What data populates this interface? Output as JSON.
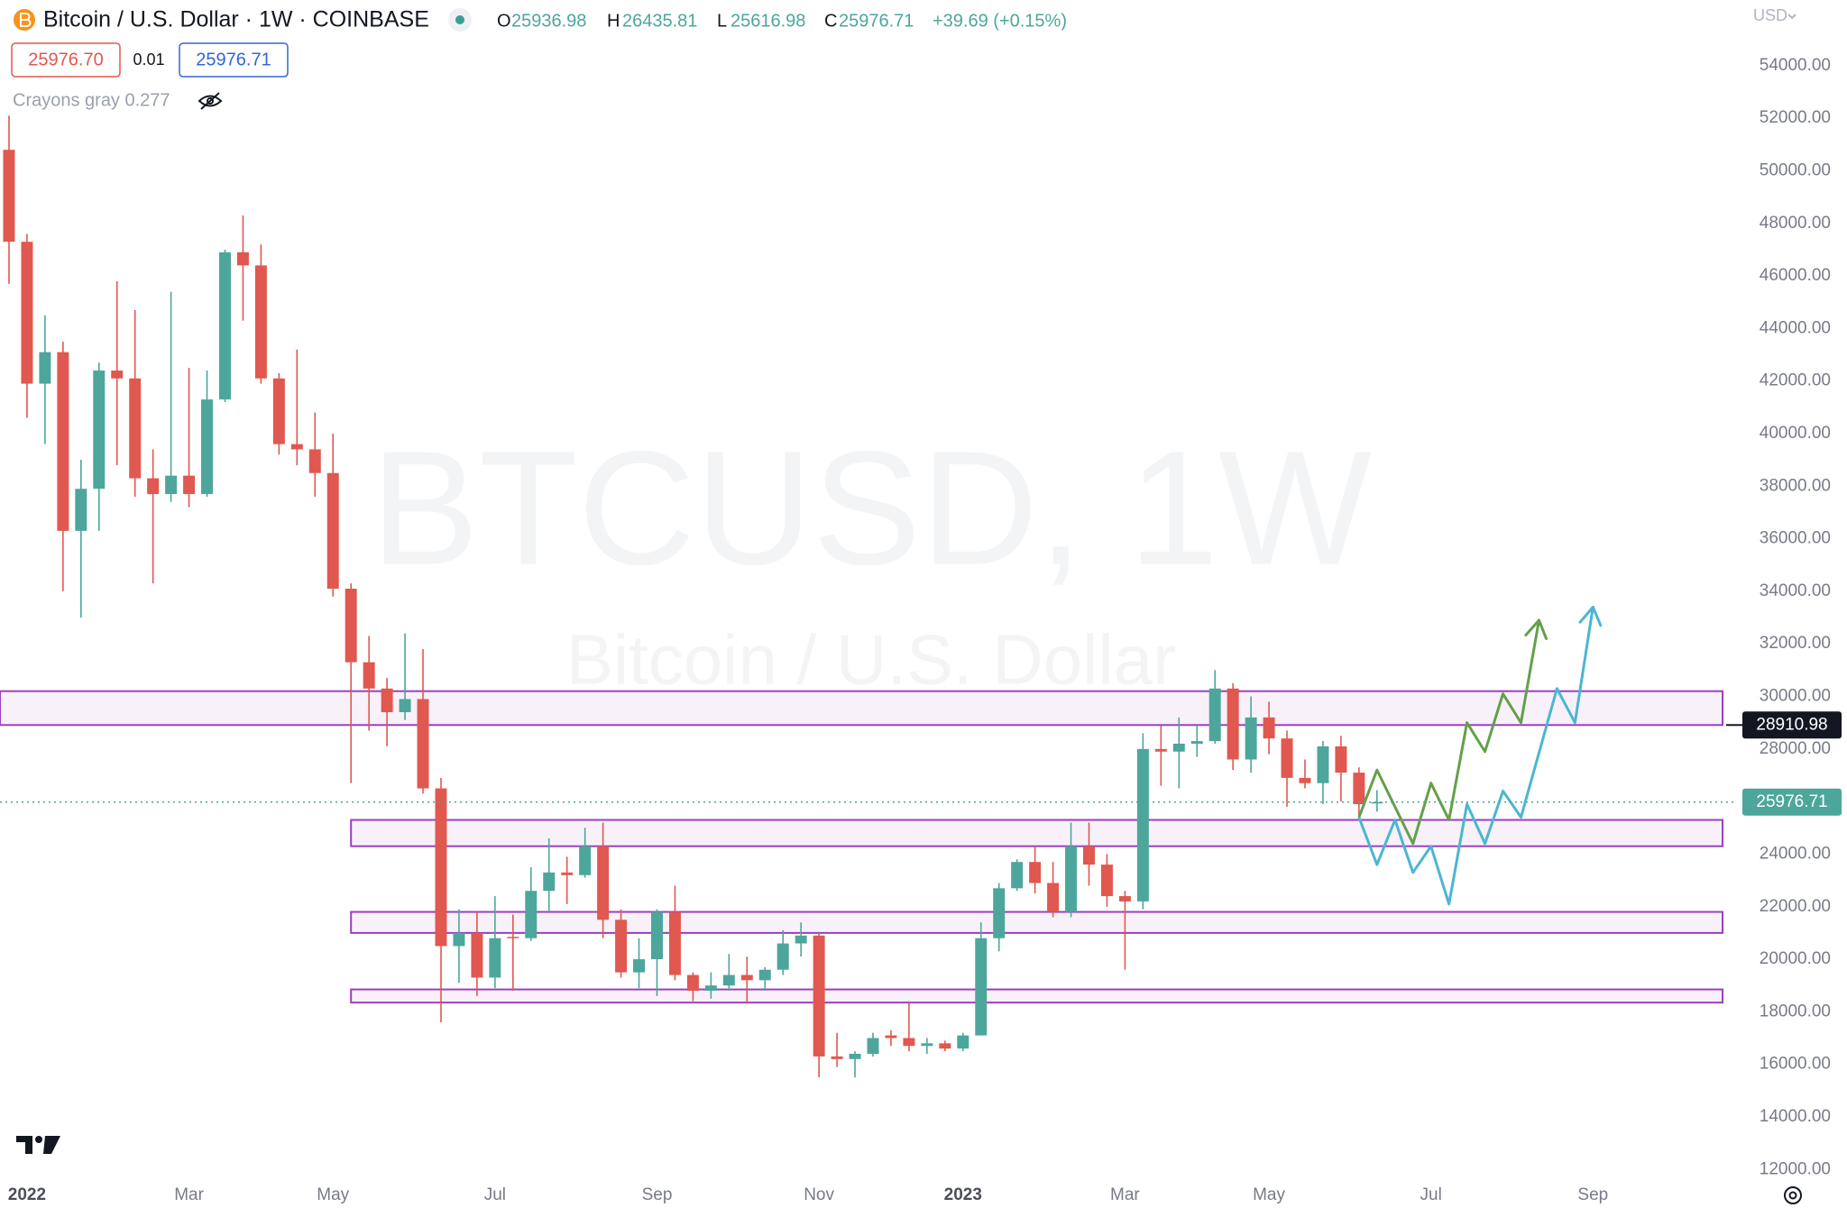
{
  "chart_data": {
    "type": "candlestick",
    "title": "Bitcoin / U.S. Dollar · 1W · COINBASE",
    "ohlc_letters": [
      "O",
      "H",
      "L",
      "C"
    ],
    "change": "+39.69 (+0.15%)",
    "sell": "25976.70",
    "spread": "0.01",
    "buy": "25976.71",
    "indicator": "Crayons gray 0.277",
    "currency": "USD",
    "watermark": "BTCUSD, 1W",
    "watermark_subtitle": "Bitcoin / U.S. Dollar",
    "up_color": "#4da69b",
    "down_color": "#e0584f",
    "zone_color": "#9b3fbf",
    "xlim": [
      -0.5,
      96
    ],
    "ylim": [
      11700,
      56500
    ],
    "xticks": [
      {
        "value": 1,
        "label": "2022"
      },
      {
        "value": 10,
        "label": "Mar"
      },
      {
        "value": 18,
        "label": "May"
      },
      {
        "value": 27,
        "label": "Jul"
      },
      {
        "value": 36,
        "label": "Sep"
      },
      {
        "value": 45,
        "label": "Nov"
      },
      {
        "value": 53,
        "label": "2023"
      },
      {
        "value": 62,
        "label": "Mar"
      },
      {
        "value": 70,
        "label": "May"
      },
      {
        "value": 79,
        "label": "Jul"
      },
      {
        "value": 88,
        "label": "Sep"
      }
    ],
    "yticks": [
      {
        "value": 12000,
        "label": "12000.00"
      },
      {
        "value": 14000,
        "label": "14000.00"
      },
      {
        "value": 16000,
        "label": "16000.00"
      },
      {
        "value": 18000,
        "label": "18000.00"
      },
      {
        "value": 20000,
        "label": "20000.00"
      },
      {
        "value": 22000,
        "label": "22000.00"
      },
      {
        "value": 24000,
        "label": "24000.00"
      },
      {
        "value": 26000,
        "label": "26000.00"
      },
      {
        "value": 28000,
        "label": "28000.00"
      },
      {
        "value": 30000,
        "label": "30000.00"
      },
      {
        "value": 32000,
        "label": "32000.00"
      },
      {
        "value": 34000,
        "label": "34000.00"
      },
      {
        "value": 36000,
        "label": "36000.00"
      },
      {
        "value": 38000,
        "label": "38000.00"
      },
      {
        "value": 40000,
        "label": "40000.00"
      },
      {
        "value": 42000,
        "label": "42000.00"
      },
      {
        "value": 44000,
        "label": "44000.00"
      },
      {
        "value": 46000,
        "label": "46000.00"
      },
      {
        "value": 48000,
        "label": "48000.00"
      },
      {
        "value": 50000,
        "label": "50000.00"
      },
      {
        "value": 52000,
        "label": "52000.00"
      },
      {
        "value": 54000,
        "label": "54000.00"
      }
    ],
    "x": [
      0,
      1,
      2,
      3,
      4,
      5,
      6,
      7,
      8,
      9,
      10,
      11,
      12,
      13,
      14,
      15,
      16,
      17,
      18,
      19,
      20,
      21,
      22,
      23,
      24,
      25,
      26,
      27,
      28,
      29,
      30,
      31,
      32,
      33,
      34,
      35,
      36,
      37,
      38,
      39,
      40,
      41,
      42,
      43,
      44,
      45,
      46,
      47,
      48,
      49,
      50,
      51,
      52,
      53,
      54,
      55,
      56,
      57,
      58,
      59,
      60,
      61,
      62,
      63,
      64,
      65,
      66,
      67,
      68,
      69,
      70,
      71,
      72,
      73,
      74,
      75,
      76
    ],
    "open": [
      50800,
      47300,
      41900,
      43100,
      36300,
      37900,
      42400,
      42100,
      38300,
      37700,
      38400,
      37700,
      41300,
      46900,
      46400,
      42100,
      39600,
      39400,
      38500,
      34100,
      31300,
      30300,
      29400,
      29900,
      26500,
      20500,
      21000,
      19300,
      20850,
      20800,
      22600,
      23300,
      23200,
      24300,
      21500,
      19500,
      20000,
      21800,
      19400,
      18800,
      19000,
      19400,
      19200,
      19600,
      20600,
      20900,
      16300,
      16200,
      16400,
      17100,
      17000,
      16700,
      16800,
      16600,
      17100,
      20800,
      22700,
      23700,
      22900,
      21800,
      24300,
      23600,
      22400,
      22200,
      28000,
      27900,
      28200,
      28300,
      30300,
      27600,
      29200,
      28400,
      26900,
      26700,
      28100,
      27100,
      25936.98
    ],
    "high": [
      52100,
      47600,
      44500,
      43500,
      39000,
      42700,
      45800,
      44700,
      39400,
      45400,
      42500,
      42400,
      47000,
      48300,
      47200,
      42300,
      43200,
      40800,
      40000,
      34300,
      32300,
      30700,
      32400,
      31800,
      26900,
      21900,
      21800,
      22400,
      21700,
      23500,
      24600,
      23900,
      25000,
      25200,
      21900,
      20800,
      21900,
      22800,
      19500,
      19500,
      20200,
      20100,
      19700,
      21100,
      21400,
      21000,
      17200,
      16500,
      17200,
      17300,
      18400,
      17000,
      16900,
      17200,
      21400,
      22900,
      23800,
      24300,
      23700,
      25200,
      25200,
      24000,
      22600,
      28600,
      28900,
      29200,
      28900,
      31000,
      30500,
      30000,
      29800,
      28700,
      27600,
      28300,
      28500,
      27300,
      26435.81
    ],
    "low": [
      45700,
      40600,
      39600,
      34000,
      33000,
      36300,
      38800,
      37600,
      34300,
      37400,
      37200,
      37600,
      41200,
      44300,
      41900,
      39200,
      38800,
      37600,
      33800,
      26700,
      28700,
      28100,
      29100,
      26300,
      17600,
      19100,
      18600,
      18900,
      18800,
      20700,
      21800,
      22100,
      23100,
      20800,
      19300,
      18900,
      18600,
      19200,
      18400,
      18500,
      18800,
      18300,
      18800,
      19400,
      20100,
      15500,
      15900,
      15500,
      16300,
      16700,
      16500,
      16400,
      16500,
      16500,
      17100,
      20300,
      22600,
      22500,
      21600,
      21600,
      22800,
      22000,
      19600,
      21900,
      26600,
      26500,
      27700,
      28200,
      27200,
      27100,
      27800,
      25800,
      26500,
      25900,
      26000,
      25300,
      25616.98
    ],
    "close": [
      47300,
      41900,
      43100,
      36300,
      37900,
      42400,
      42100,
      38300,
      37700,
      38400,
      37700,
      41300,
      46900,
      46400,
      42100,
      39600,
      39400,
      38500,
      34100,
      31300,
      30300,
      29400,
      29900,
      26500,
      20500,
      21000,
      19300,
      20800,
      20800,
      22600,
      23300,
      23200,
      24300,
      21500,
      19500,
      20000,
      21800,
      19400,
      18800,
      19000,
      19400,
      19200,
      19600,
      20600,
      20900,
      16300,
      16200,
      16400,
      17000,
      17000,
      16700,
      16800,
      16600,
      17100,
      20800,
      22700,
      23700,
      22900,
      21800,
      24300,
      23600,
      22400,
      22200,
      28000,
      27900,
      28200,
      28300,
      30300,
      27600,
      29200,
      28400,
      26900,
      26700,
      28100,
      27100,
      25900,
      25976.71
    ],
    "zones": [
      {
        "top": 30200,
        "bottom": 28910.98,
        "x_start": -0.5,
        "x_end": 95.2
      },
      {
        "top": 25300,
        "bottom": 24300,
        "x_start": 19,
        "x_end": 95.2
      },
      {
        "top": 21800,
        "bottom": 21000,
        "x_start": 19,
        "x_end": 95.2
      },
      {
        "top": 18850,
        "bottom": 18350,
        "x_start": 19,
        "x_end": 95.2
      }
    ],
    "paths": [
      {
        "color": "#63a04a",
        "x": [
          75,
          76,
          78,
          79,
          80,
          81,
          82,
          83,
          84,
          85
        ],
        "y": [
          25400,
          27200,
          24400,
          26700,
          25300,
          29000,
          27900,
          30100,
          29000,
          32900
        ]
      },
      {
        "color": "#4bb6d1",
        "x": [
          75,
          76,
          77,
          78,
          79,
          80,
          81,
          82,
          83,
          84,
          86,
          87,
          88
        ],
        "y": [
          25400,
          23600,
          25300,
          23300,
          24300,
          22100,
          25900,
          24400,
          26400,
          25400,
          30300,
          29000,
          33400
        ]
      }
    ]
  }
}
